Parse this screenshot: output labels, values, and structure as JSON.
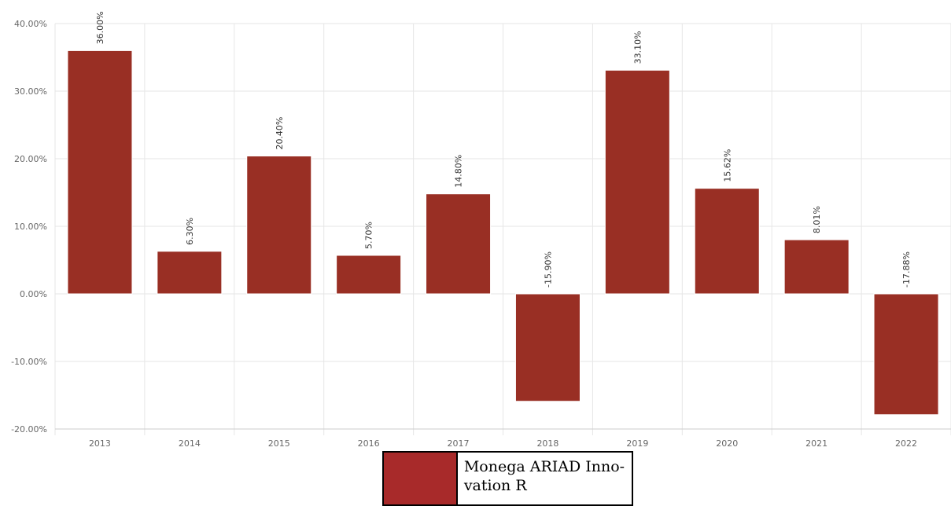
{
  "chart_data": {
    "type": "bar",
    "categories": [
      "2013",
      "2014",
      "2015",
      "2016",
      "2017",
      "2018",
      "2019",
      "2020",
      "2021",
      "2022"
    ],
    "series": [
      {
        "name": "Monega ARIAD Innovation R",
        "values": [
          36.0,
          6.3,
          20.4,
          5.7,
          14.8,
          -15.9,
          33.1,
          15.62,
          8.01,
          -17.88
        ],
        "labels": [
          "36.00%",
          "6.30%",
          "20.40%",
          "5.70%",
          "14.80%",
          "-15.90%",
          "33.10%",
          "15.62%",
          "8.01%",
          "-17.88%"
        ]
      }
    ],
    "yticks": [
      40,
      30,
      20,
      10,
      0,
      -10,
      -20
    ],
    "ytick_labels": [
      "40.00%",
      "30.00%",
      "20.00%",
      "10.00%",
      "0.00%",
      "-10.00%",
      "-20.00%"
    ],
    "ylim": [
      -20,
      40
    ],
    "grid": true,
    "legend_position": "bottom-center"
  },
  "legend": {
    "label": "Monega ARIAD Inno-vation R"
  },
  "colors": {
    "bar": "#992f24",
    "legend_swatch": "#a82a2a",
    "grid": "#e6e6e6",
    "axis": "#cccccc",
    "tick_text": "#666666",
    "label_text": "#333333"
  }
}
